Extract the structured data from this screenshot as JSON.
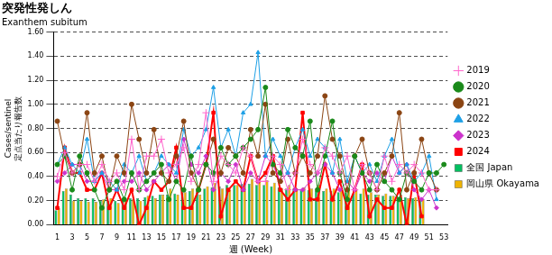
{
  "chart_data": {
    "type": "line",
    "title": "突発性発しん",
    "subtitle": "Exanthem subitum",
    "x_label": "週 (Week)",
    "y_label": [
      "Cases/sentinel",
      "定点当たり報告数"
    ],
    "categories": [
      1,
      null,
      3,
      null,
      5,
      null,
      7,
      null,
      9,
      null,
      11,
      null,
      13,
      null,
      15,
      null,
      17,
      null,
      19,
      null,
      21,
      null,
      23,
      null,
      25,
      null,
      27,
      null,
      29,
      null,
      31,
      null,
      33,
      null,
      35,
      null,
      37,
      null,
      39,
      null,
      41,
      null,
      43,
      null,
      45,
      null,
      47,
      null,
      49,
      null,
      51,
      null,
      53
    ],
    "ylim": [
      0,
      1.6
    ],
    "yticks": [
      {
        "value": 0,
        "label": "0.00"
      },
      {
        "value": 0.2,
        "label": "0.20"
      },
      {
        "value": 0.4,
        "label": "0.40"
      },
      {
        "value": 0.6,
        "label": "0.60"
      },
      {
        "value": 0.8,
        "label": "0.80"
      },
      {
        "value": 1.0,
        "label": "1.00"
      },
      {
        "value": 1.2,
        "label": "1.20"
      },
      {
        "value": 1.4,
        "label": "1.40"
      },
      {
        "value": 1.6,
        "label": "1.60"
      }
    ],
    "grid": true,
    "legend": "right",
    "series": [
      {
        "name": "全国 Japan",
        "type": "bar",
        "color": "#00c060",
        "values": [
          0.12,
          0.28,
          0.25,
          0.22,
          0.22,
          0.22,
          0.2,
          0.2,
          0.2,
          0.22,
          0.22,
          0.22,
          0.23,
          0.24,
          0.25,
          0.25,
          0.26,
          0.27,
          0.28,
          0.28,
          0.3,
          0.31,
          0.32,
          0.33,
          0.33,
          0.34,
          0.34,
          0.33,
          0.33,
          0.32,
          0.31,
          0.3,
          0.3,
          0.29,
          0.29,
          0.28,
          0.28,
          0.28,
          0.27,
          0.27,
          0.26,
          0.26,
          0.25,
          0.25,
          0.24,
          0.24,
          0.23,
          0.23,
          0.22,
          0.22,
          null,
          null,
          null
        ]
      },
      {
        "name": "岡山県 Okayama",
        "type": "bar",
        "color": "#f0b400",
        "values": [
          0.14,
          0.3,
          0.2,
          0.2,
          0.19,
          0.19,
          0.21,
          0.22,
          0.18,
          0.2,
          0.21,
          0.2,
          0.24,
          0.22,
          0.25,
          0.3,
          0.25,
          0.27,
          0.3,
          0.25,
          0.32,
          0.35,
          0.3,
          0.29,
          0.33,
          0.35,
          0.38,
          0.36,
          0.37,
          0.35,
          0.3,
          0.33,
          0.3,
          0.31,
          0.3,
          0.33,
          0.3,
          0.3,
          0.28,
          0.3,
          0.29,
          0.3,
          0.27,
          0.25,
          0.26,
          0.24,
          0.25,
          0.22,
          0.23,
          0.21,
          null,
          null,
          null
        ]
      },
      {
        "name": "2019",
        "type": "line",
        "color": "#ff66cc",
        "marker": "cross",
        "line_style": "solid",
        "values": [
          0.4,
          0.6,
          0.43,
          0.5,
          0.5,
          0.36,
          0.5,
          0.36,
          0.43,
          0.29,
          0.71,
          0.29,
          0.57,
          0.57,
          0.71,
          0.43,
          0.5,
          0.64,
          0.36,
          0.5,
          0.93,
          0.36,
          0.57,
          0.5,
          0.43,
          0.64,
          0.57,
          0.36,
          0.36,
          0.57,
          0.5,
          0.29,
          0.43,
          0.71,
          0.5,
          0.43,
          0.64,
          0.57,
          0.43,
          0.57,
          0.29,
          0.5,
          0.43,
          0.29,
          0.57,
          0.36,
          0.5,
          0.43,
          0.5,
          0.43,
          0.29,
          0.29,
          null
        ]
      },
      {
        "name": "2020",
        "type": "line",
        "color": "#1a8a1a",
        "marker": "circle",
        "line_style": "solid",
        "values": [
          0.5,
          0.57,
          0.29,
          0.57,
          0.43,
          0.29,
          0.14,
          0.29,
          0.36,
          0.21,
          0.43,
          0.29,
          0.36,
          0.43,
          0.5,
          0.21,
          0.36,
          0.29,
          0.57,
          0.29,
          0.5,
          0.43,
          0.64,
          0.5,
          0.57,
          0.64,
          0.71,
          0.79,
          1.14,
          0.5,
          0.43,
          0.79,
          0.64,
          0.57,
          0.86,
          0.29,
          0.57,
          0.86,
          0.43,
          0.21,
          0.57,
          0.43,
          0.29,
          0.5,
          0.36,
          0.29,
          0.21,
          0.43,
          0.36,
          0.29,
          0.43,
          0.43,
          0.5
        ]
      },
      {
        "name": "2021",
        "type": "line",
        "color": "#8b4513",
        "marker": "circle",
        "line_style": "solid",
        "values": [
          0.86,
          0.57,
          0.43,
          0.5,
          0.93,
          0.43,
          0.57,
          0.29,
          0.57,
          0.43,
          1.0,
          0.71,
          0.43,
          0.79,
          0.43,
          0.36,
          0.57,
          0.86,
          0.43,
          0.29,
          0.5,
          0.71,
          0.43,
          0.64,
          0.57,
          0.43,
          0.79,
          0.57,
          1.0,
          0.43,
          0.36,
          0.71,
          0.43,
          0.57,
          0.43,
          0.57,
          1.07,
          0.71,
          0.57,
          0.29,
          0.57,
          0.71,
          0.43,
          0.29,
          0.43,
          0.57,
          0.93,
          0.29,
          0.43,
          0.71,
          0.43,
          0.29,
          null
        ]
      },
      {
        "name": "2022",
        "type": "line",
        "color": "#1ea0e6",
        "marker": "triangle",
        "line_style": "solid",
        "values": [
          0.5,
          0.64,
          0.5,
          0.43,
          0.71,
          0.36,
          0.43,
          0.36,
          0.29,
          0.5,
          0.43,
          0.57,
          0.36,
          0.43,
          0.57,
          0.5,
          0.43,
          0.79,
          0.57,
          0.64,
          0.79,
          1.14,
          0.64,
          0.79,
          0.57,
          0.93,
          1.0,
          1.43,
          0.57,
          0.71,
          0.57,
          0.43,
          0.64,
          0.79,
          0.57,
          0.71,
          0.64,
          0.43,
          0.71,
          0.36,
          0.57,
          0.43,
          0.5,
          0.36,
          0.57,
          0.71,
          0.43,
          0.5,
          0.36,
          0.43,
          0.57,
          0.21,
          null
        ]
      },
      {
        "name": "2023",
        "type": "line",
        "color": "#cc33cc",
        "marker": "diamond",
        "line_style": "solid",
        "values": [
          0.36,
          0.43,
          0.5,
          0.5,
          0.36,
          0.36,
          0.43,
          0.29,
          0.29,
          0.36,
          0.36,
          0.43,
          0.29,
          0.36,
          0.43,
          0.5,
          0.36,
          0.71,
          0.5,
          0.43,
          0.57,
          0.29,
          0.43,
          0.36,
          0.5,
          0.29,
          0.43,
          0.36,
          0.57,
          0.5,
          0.36,
          0.43,
          0.29,
          0.29,
          0.36,
          0.43,
          0.5,
          0.43,
          0.29,
          0.36,
          0.29,
          0.43,
          0.36,
          0.43,
          0.36,
          0.57,
          0.43,
          0.5,
          0.29,
          0.21,
          0.29,
          0.14,
          null
        ]
      },
      {
        "name": "2024",
        "type": "line",
        "color": "#ff0000",
        "marker": "square",
        "line_style": "solid",
        "values": [
          0.14,
          0.64,
          0.43,
          0.43,
          0.29,
          0.29,
          0.43,
          0.14,
          0.29,
          0.14,
          0.29,
          0,
          0.14,
          0.36,
          0.29,
          0.36,
          0.64,
          0.14,
          0.14,
          0.29,
          0.5,
          0.93,
          0.07,
          0.29,
          0.36,
          0.29,
          0.57,
          0.36,
          0.43,
          0.57,
          0.29,
          0.21,
          0.29,
          0.93,
          0.21,
          0.21,
          0.5,
          0.21,
          0.36,
          0.14,
          0.29,
          0.5,
          0.07,
          0.21,
          0.14,
          0.14,
          0.29,
          0,
          0.43,
          0.07,
          null,
          null,
          null
        ]
      }
    ]
  }
}
